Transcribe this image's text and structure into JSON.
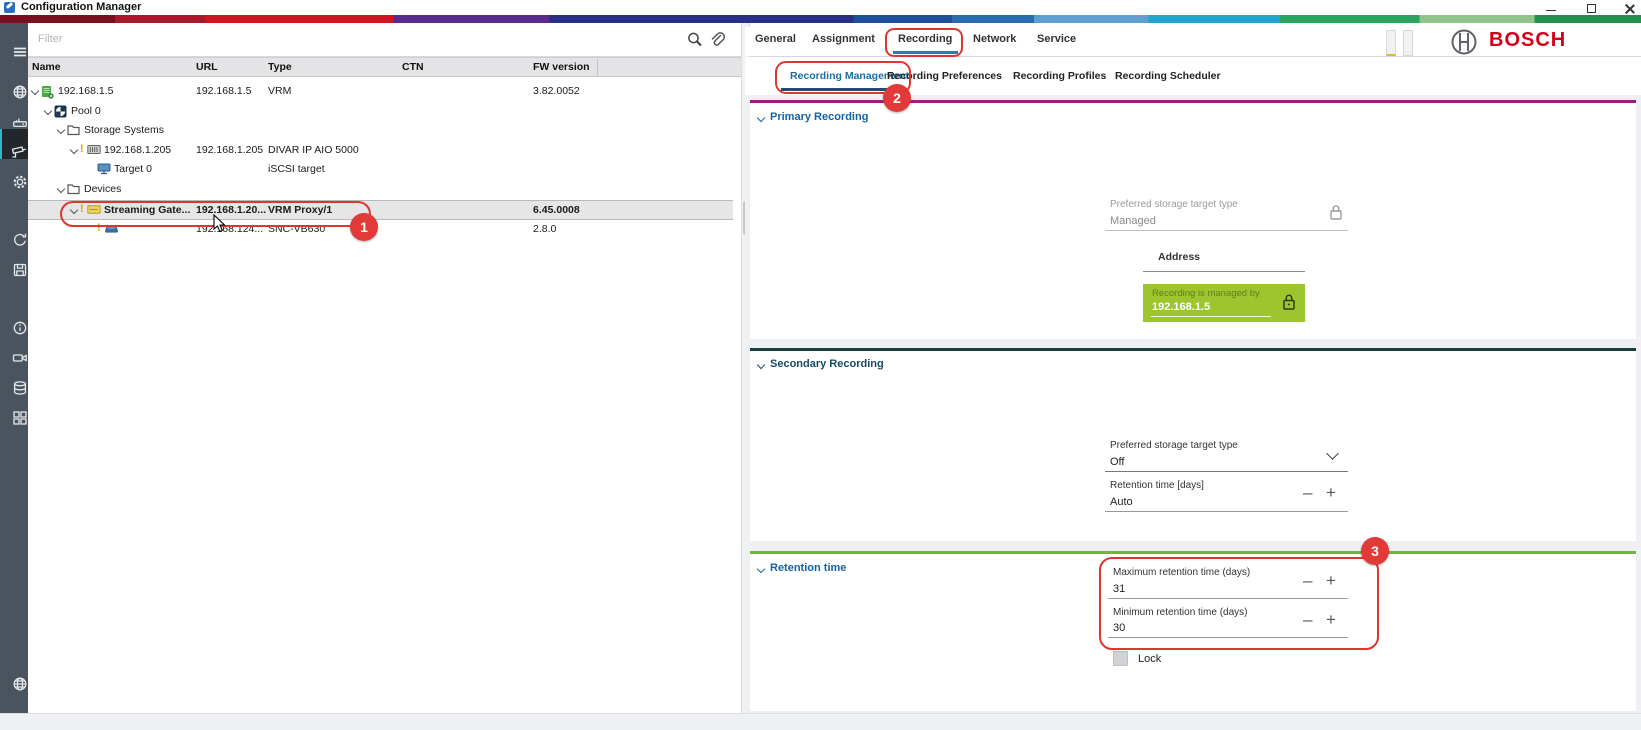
{
  "titlebar": {
    "title": "Configuration Manager"
  },
  "brand": {
    "logo_text": "BOSCH"
  },
  "filter": {
    "placeholder": "Filter"
  },
  "table": {
    "headers": [
      "Name",
      "URL",
      "Type",
      "CTN",
      "FW version"
    ]
  },
  "tree": {
    "rows": [
      {
        "name": "192.168.1.5",
        "url": "192.168.1.5",
        "type": "VRM",
        "ctn": "",
        "fw": "3.82.0052",
        "icon": "vrm-server-icon",
        "level": 0,
        "chevron": true,
        "warning": false,
        "selected": false
      },
      {
        "name": "Pool 0",
        "url": "",
        "type": "",
        "ctn": "",
        "fw": "",
        "icon": "pool-icon",
        "level": 1,
        "chevron": true,
        "warning": false,
        "selected": false
      },
      {
        "name": "Storage Systems",
        "url": "",
        "type": "",
        "ctn": "",
        "fw": "",
        "icon": "folder-icon",
        "level": 2,
        "chevron": true,
        "warning": false,
        "selected": false
      },
      {
        "name": "192.168.1.205",
        "url": "192.168.1.205",
        "type": "DIVAR IP AIO 5000",
        "ctn": "",
        "fw": "",
        "icon": "storage-icon",
        "level": 3,
        "chevron": true,
        "warning": true,
        "selected": false
      },
      {
        "name": "Target 0",
        "url": "",
        "type": "iSCSI target",
        "ctn": "",
        "fw": "",
        "icon": "target-icon",
        "level": 4,
        "chevron": false,
        "warning": false,
        "selected": false
      },
      {
        "name": "Devices",
        "url": "",
        "type": "",
        "ctn": "",
        "fw": "",
        "icon": "folder-icon",
        "level": 2,
        "chevron": true,
        "warning": false,
        "selected": false
      },
      {
        "name": "Streaming Gate...",
        "url": "192.168.1.20...",
        "type": "VRM Proxy/1",
        "ctn": "",
        "fw": "6.45.0008",
        "icon": "gateway-icon",
        "level": 3,
        "chevron": true,
        "warning": true,
        "selected": true
      },
      {
        "name": "",
        "url": "192.168.124...",
        "type": "SNC-VB630",
        "ctn": "",
        "fw": "2.8.0",
        "icon": "camera-icon",
        "level": 4,
        "chevron": false,
        "warning": true,
        "selected": false
      }
    ]
  },
  "tabs": {
    "main": [
      "General",
      "Assignment",
      "Recording",
      "Network",
      "Service"
    ],
    "main_selected": "Recording",
    "sub": [
      "Recording Management",
      "Recording Preferences",
      "Recording Profiles",
      "Recording Scheduler"
    ],
    "sub_selected": "Recording Management"
  },
  "primary": {
    "title": "Primary Recording",
    "storage_label": "Preferred storage target type",
    "storage_value": "Managed",
    "address_label": "Address",
    "managed_note": "Recording is managed by",
    "managed_address": "192.168.1.5"
  },
  "secondary": {
    "title": "Secondary Recording",
    "storage_label": "Preferred storage target type",
    "storage_value": "Off",
    "retention_label": "Retention time [days]",
    "retention_value": "Auto"
  },
  "retention": {
    "title": "Retention time",
    "max_label": "Maximum retention time (days)",
    "max_value": "31",
    "min_label": "Minimum retention time (days)",
    "min_value": "30",
    "lock_label": "Lock"
  },
  "annotations": {
    "step1": "1",
    "step2": "2",
    "step3": "3"
  },
  "sidebar": {
    "items": [
      "hamburger-menu-icon",
      "network-globe-icon",
      "hardware-devices-icon",
      "camera-devices-icon",
      "settings-gear-icon",
      "sync-refresh-icon",
      "save-disk-icon",
      "info-icon",
      "video-camera-icon",
      "database-icon",
      "app-grid-icon",
      "web-globe-icon",
      "partial-bottom-icon"
    ],
    "selected_index": 3
  },
  "colors": {
    "annotation_red": "#e0352f",
    "bosch_red": "#d4001a",
    "primary_section_line": "#9c1c80",
    "secondary_section_line": "#1b3f3c",
    "retention_section_line": "#73b441",
    "managed_box_green": "#9dc62e",
    "selected_subtab_blue": "#1b6f9e",
    "section_title_blue": "#1463a4",
    "sidebar_bg": "#4a545e"
  }
}
